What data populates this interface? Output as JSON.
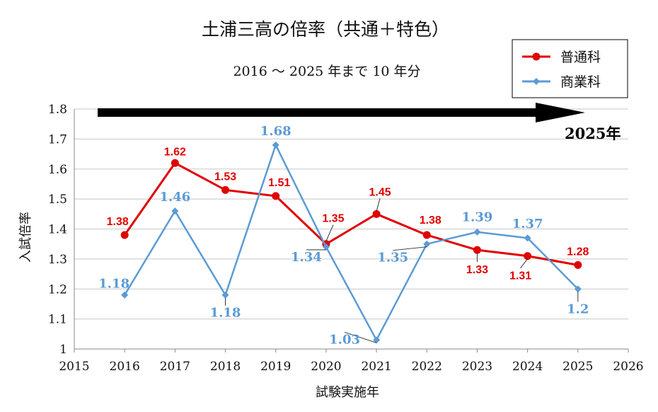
{
  "chart_data": {
    "type": "line",
    "title": "土浦三高の倍率（共通＋特色）",
    "subtitle": "2016 ～ 2025 年まで 10 年分",
    "xlabel": "試験実施年",
    "ylabel": "入試倍率",
    "xlim": [
      2015,
      2026
    ],
    "ylim": [
      1,
      1.8
    ],
    "x_ticks": [
      "2015",
      "2016",
      "2017",
      "2018",
      "2019",
      "2020",
      "2021",
      "2022",
      "2023",
      "2024",
      "2025",
      "2026"
    ],
    "y_ticks": [
      "1",
      "1.1",
      "1.2",
      "1.3",
      "1.4",
      "1.5",
      "1.6",
      "1.7",
      "1.8"
    ],
    "grid": true,
    "legend_position": "top-right",
    "annotation": "2025年",
    "series": [
      {
        "name": "普通科",
        "color": "#e00000",
        "marker": "circle",
        "x": [
          2016,
          2017,
          2018,
          2019,
          2020,
          2021,
          2022,
          2023,
          2024,
          2025
        ],
        "values": [
          1.38,
          1.62,
          1.53,
          1.51,
          1.35,
          1.45,
          1.38,
          1.33,
          1.31,
          1.28
        ],
        "labels": [
          "1.38",
          "1.62",
          "1.53",
          "1.51",
          "1.35",
          "1.45",
          "1.38",
          "1.33",
          "1.31",
          "1.28"
        ]
      },
      {
        "name": "商業科",
        "color": "#5b9bd5",
        "marker": "diamond",
        "x": [
          2016,
          2017,
          2018,
          2019,
          2020,
          2021,
          2022,
          2023,
          2024,
          2025
        ],
        "values": [
          1.18,
          1.46,
          1.18,
          1.68,
          1.34,
          1.03,
          1.35,
          1.39,
          1.37,
          1.2
        ],
        "labels": [
          "1.18",
          "1.46",
          "1.18",
          "1.68",
          "1.34",
          "1.03",
          "1.35",
          "1.39",
          "1.37",
          "1.2"
        ]
      }
    ]
  }
}
